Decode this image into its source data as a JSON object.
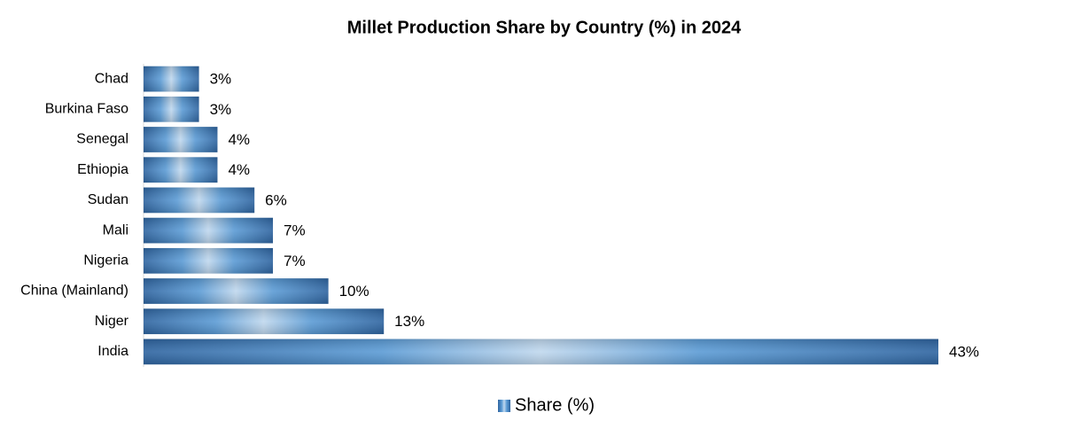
{
  "chart_data": {
    "type": "hbar",
    "title": "Millet Production Share by Country (%) in 2024",
    "categories": [
      "Chad",
      "Burkina Faso",
      "Senegal",
      "Ethiopia",
      "Sudan",
      "Mali",
      "Nigeria",
      "China (Mainland)",
      "Niger",
      "India"
    ],
    "series": [
      {
        "name": "Share (%)",
        "color": "#2e64a0",
        "values": [
          3,
          3,
          4,
          4,
          6,
          7,
          7,
          10,
          13,
          43
        ],
        "value_labels": [
          "3%",
          "3%",
          "4%",
          "4%",
          "6%",
          "7%",
          "7%",
          "10%",
          "13%",
          "43%"
        ]
      }
    ],
    "legend": "bottom"
  }
}
